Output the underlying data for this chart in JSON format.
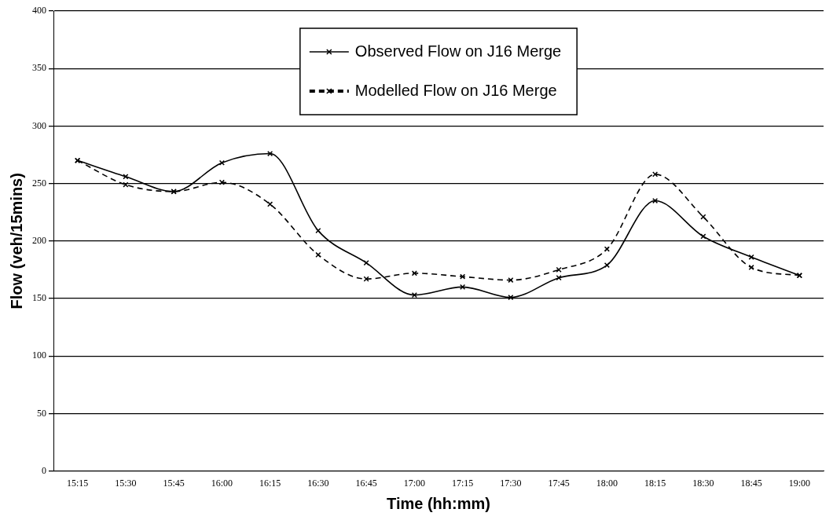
{
  "chart_data": {
    "type": "line",
    "xlabel": "Time (hh:mm)",
    "ylabel": "Flow (veh/15mins)",
    "categories": [
      "15:15",
      "15:30",
      "15:45",
      "16:00",
      "16:15",
      "16:30",
      "16:45",
      "17:00",
      "17:15",
      "17:30",
      "17:45",
      "18:00",
      "18:15",
      "18:30",
      "18:45",
      "19:00"
    ],
    "series": [
      {
        "name": "Observed Flow on J16 Merge",
        "color": "#000000",
        "line_style": "solid",
        "values": [
          270,
          256,
          243,
          268,
          276,
          209,
          181,
          153,
          160,
          151,
          168,
          179,
          235,
          204,
          186,
          170
        ]
      },
      {
        "name": "Modelled Flow on J16 Merge",
        "color": "#000000",
        "line_style": "dashed",
        "values": [
          270,
          249,
          243,
          251,
          232,
          188,
          167,
          172,
          169,
          166,
          175,
          193,
          258,
          221,
          177,
          170
        ]
      }
    ],
    "ylim": [
      0,
      400
    ],
    "yticks": [
      0,
      50,
      100,
      150,
      200,
      250,
      300,
      350,
      400
    ],
    "grid": "y",
    "legend": "top",
    "marker": "cross"
  }
}
